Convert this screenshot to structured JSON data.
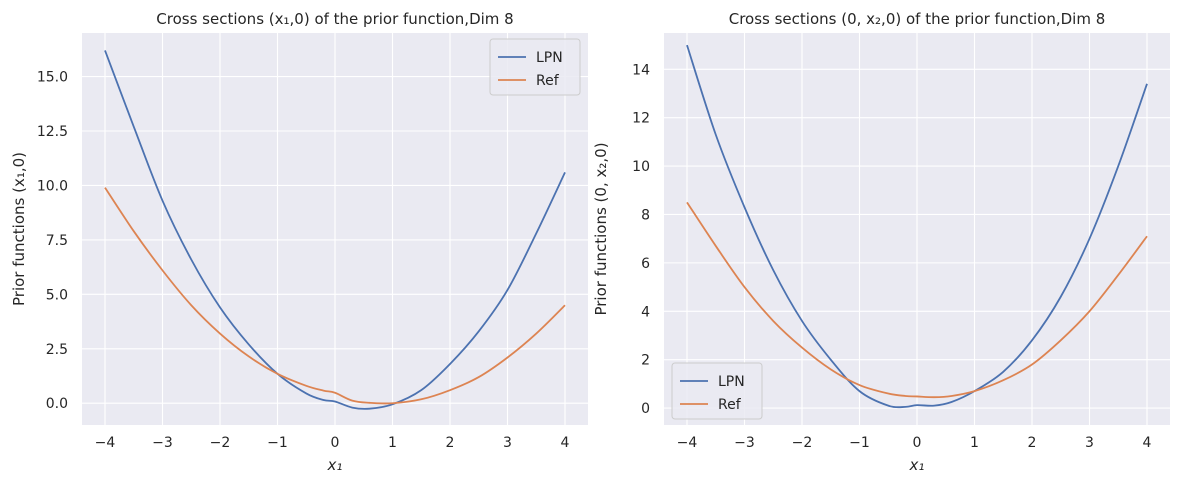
{
  "chart_data": [
    {
      "type": "line",
      "title": "Cross sections (x₁,0) of the prior function,Dim 8",
      "xlabel": "x₁",
      "ylabel": "Prior functions (x₁,0)",
      "xlim": [
        -4.4,
        4.4
      ],
      "ylim": [
        -1.0,
        17.0
      ],
      "xticks": [
        -4,
        -3,
        -2,
        -1,
        0,
        1,
        2,
        3,
        4
      ],
      "xtick_labels": [
        "−4",
        "−3",
        "−2",
        "−1",
        "0",
        "1",
        "2",
        "3",
        "4"
      ],
      "yticks": [
        0,
        2.5,
        5,
        7.5,
        10,
        12.5,
        15
      ],
      "ytick_labels": [
        "0.0",
        "2.5",
        "5.0",
        "7.5",
        "10.0",
        "12.5",
        "15.0"
      ],
      "grid": true,
      "legend_position": "top-right",
      "x": [
        -4,
        -3.5,
        -3,
        -2.5,
        -2,
        -1.5,
        -1,
        -0.5,
        -0.2,
        0,
        0.3,
        0.6,
        1,
        1.5,
        2,
        2.5,
        3,
        3.5,
        4
      ],
      "series": [
        {
          "name": "LPN",
          "color": "#4c72b0",
          "values": [
            16.2,
            12.7,
            9.3,
            6.6,
            4.4,
            2.7,
            1.35,
            0.45,
            0.15,
            0.08,
            -0.2,
            -0.25,
            -0.05,
            0.6,
            1.8,
            3.3,
            5.2,
            7.8,
            10.6
          ]
        },
        {
          "name": "Ref",
          "color": "#dd8452",
          "values": [
            9.9,
            7.9,
            6.1,
            4.5,
            3.2,
            2.15,
            1.35,
            0.8,
            0.58,
            0.48,
            0.12,
            0.02,
            0.0,
            0.18,
            0.6,
            1.2,
            2.1,
            3.2,
            4.5
          ]
        }
      ]
    },
    {
      "type": "line",
      "title": "Cross sections (0, x₂,0) of the prior function,Dim 8",
      "xlabel": "x₁",
      "ylabel": "Prior functions (0, x₂,0)",
      "xlim": [
        -4.4,
        4.4
      ],
      "ylim": [
        -0.7,
        15.5
      ],
      "xticks": [
        -4,
        -3,
        -2,
        -1,
        0,
        1,
        2,
        3,
        4
      ],
      "xtick_labels": [
        "−4",
        "−3",
        "−2",
        "−1",
        "0",
        "1",
        "2",
        "3",
        "4"
      ],
      "yticks": [
        0,
        2,
        4,
        6,
        8,
        10,
        12,
        14
      ],
      "ytick_labels": [
        "0",
        "2",
        "4",
        "6",
        "8",
        "10",
        "12",
        "14"
      ],
      "grid": true,
      "legend_position": "bottom-left",
      "x": [
        -4,
        -3.5,
        -3,
        -2.5,
        -2,
        -1.5,
        -1,
        -0.5,
        -0.2,
        0,
        0.3,
        0.6,
        1,
        1.5,
        2,
        2.5,
        3,
        3.5,
        4
      ],
      "series": [
        {
          "name": "LPN",
          "color": "#4c72b0",
          "values": [
            15.0,
            11.3,
            8.3,
            5.7,
            3.6,
            2.0,
            0.7,
            0.1,
            0.05,
            0.12,
            0.1,
            0.25,
            0.7,
            1.5,
            2.8,
            4.6,
            7.0,
            10.0,
            13.4
          ]
        },
        {
          "name": "Ref",
          "color": "#dd8452",
          "values": [
            8.5,
            6.7,
            5.0,
            3.6,
            2.5,
            1.6,
            0.95,
            0.6,
            0.5,
            0.48,
            0.45,
            0.5,
            0.7,
            1.15,
            1.8,
            2.8,
            4.0,
            5.5,
            7.1
          ]
        }
      ]
    }
  ]
}
